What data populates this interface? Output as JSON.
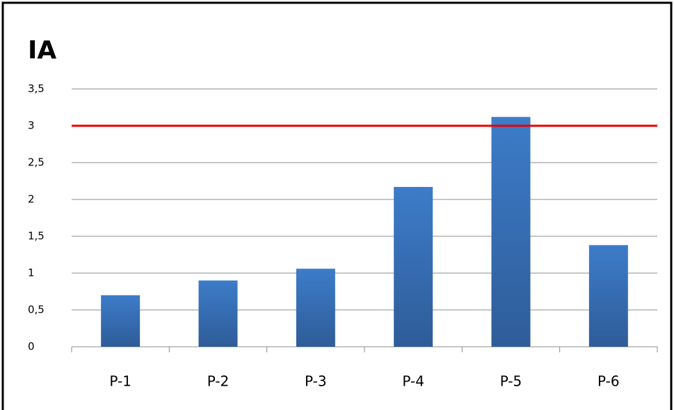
{
  "chart_data": {
    "type": "bar",
    "title": "IA",
    "categories": [
      "P-1",
      "P-2",
      "P-3",
      "P-4",
      "P-5",
      "P-6"
    ],
    "values": [
      0.7,
      0.9,
      1.06,
      2.17,
      3.12,
      1.38
    ],
    "color": "#3d7cc9",
    "ylim": [
      0,
      3.5
    ],
    "yticks": [
      0,
      {
        "value": 0.5,
        "label": "0,5"
      },
      1,
      {
        "value": 1.5,
        "label": "1,5"
      },
      2,
      {
        "value": 2.5,
        "label": "2,5"
      },
      3,
      {
        "value": 3.5,
        "label": "3,5"
      }
    ],
    "grid": true,
    "reference_line": {
      "value": 3,
      "color": "#ee0000"
    }
  }
}
